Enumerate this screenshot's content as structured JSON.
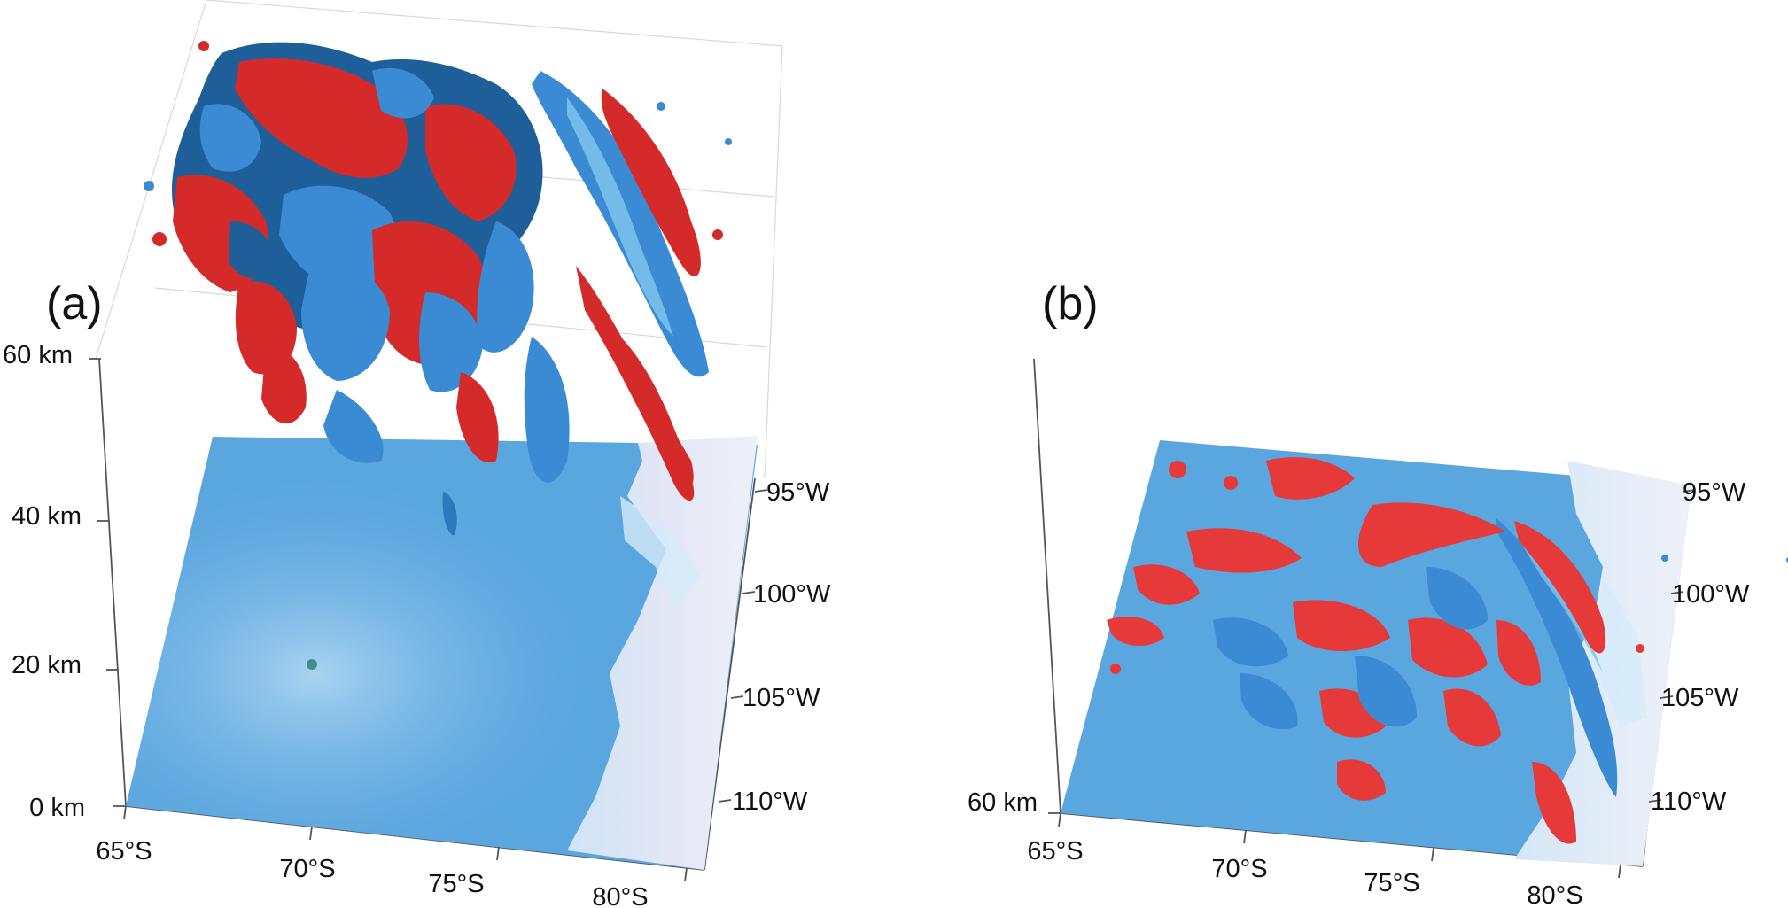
{
  "figure": {
    "panel_a": {
      "label": "(a)",
      "altitude_ticks": [
        "0 km",
        "20 km",
        "40 km",
        "60 km"
      ],
      "latitude_ticks": [
        "65°S",
        "70°S",
        "75°S",
        "80°S"
      ],
      "longitude_ticks": [
        "95°W",
        "100°W",
        "105°W",
        "110°W"
      ]
    },
    "panel_b": {
      "label": "(b)",
      "altitude_ticks": [
        "60 km"
      ],
      "latitude_ticks": [
        "65°S",
        "70°S",
        "75°S",
        "80°S"
      ],
      "longitude_ticks": [
        "95°W",
        "100°W",
        "105°W",
        "110°W"
      ]
    },
    "colors": {
      "positive_isosurface": "#d42a2a",
      "negative_isosurface": "#3b8ad4",
      "ocean": "#5aa6df",
      "ice_sheet": "#e4e6f4"
    }
  }
}
